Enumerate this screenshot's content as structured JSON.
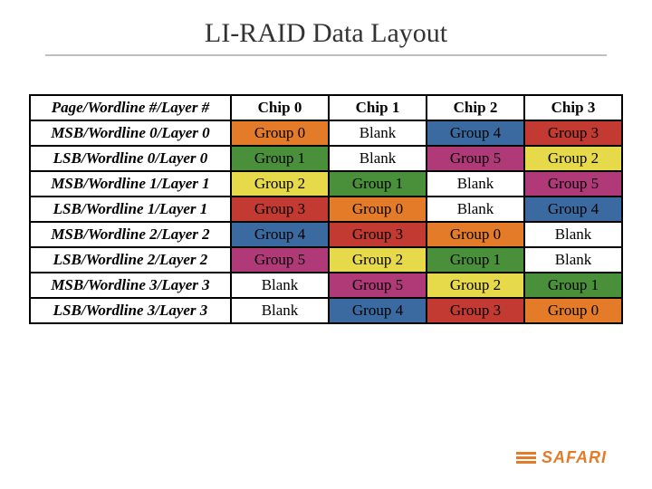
{
  "title": "LI-RAID Data Layout",
  "table": {
    "corner": "Page/Wordline #/Layer #",
    "columns": [
      "Chip 0",
      "Chip 1",
      "Chip 2",
      "Chip 3"
    ],
    "row_headers": [
      "MSB/Wordline 0/Layer 0",
      "LSB/Wordline 0/Layer 0",
      "MSB/Wordline 1/Layer 1",
      "LSB/Wordline 1/Layer 1",
      "MSB/Wordline 2/Layer 2",
      "LSB/Wordline 2/Layer 2",
      "MSB/Wordline 3/Layer 3",
      "LSB/Wordline 3/Layer 3"
    ],
    "cells": [
      [
        "Group 0",
        "Blank",
        "Group 4",
        "Group 3"
      ],
      [
        "Group 1",
        "Blank",
        "Group 5",
        "Group 2"
      ],
      [
        "Group 2",
        "Group 1",
        "Blank",
        "Group 5"
      ],
      [
        "Group 3",
        "Group 0",
        "Blank",
        "Group 4"
      ],
      [
        "Group 4",
        "Group 3",
        "Group 0",
        "Blank"
      ],
      [
        "Group 5",
        "Group 2",
        "Group 1",
        "Blank"
      ],
      [
        "Blank",
        "Group 5",
        "Group 2",
        "Group 1"
      ],
      [
        "Blank",
        "Group 4",
        "Group 3",
        "Group 0"
      ]
    ]
  },
  "colors": {
    "Group 0": "#e37b29",
    "Group 1": "#4a8f3a",
    "Group 2": "#e6d94a",
    "Group 3": "#c23a32",
    "Group 4": "#3b6aa0",
    "Group 5": "#b03a77",
    "Blank": "#ffffff"
  },
  "style": {
    "title_fontsize": 30,
    "title_color": "#333333",
    "underline_color": "#bfbfbf",
    "cell_fontsize": 17,
    "border_color": "#000000",
    "background": "#ffffff",
    "logo_color": "#e37b29"
  },
  "logo": {
    "text": "SAFARI"
  }
}
